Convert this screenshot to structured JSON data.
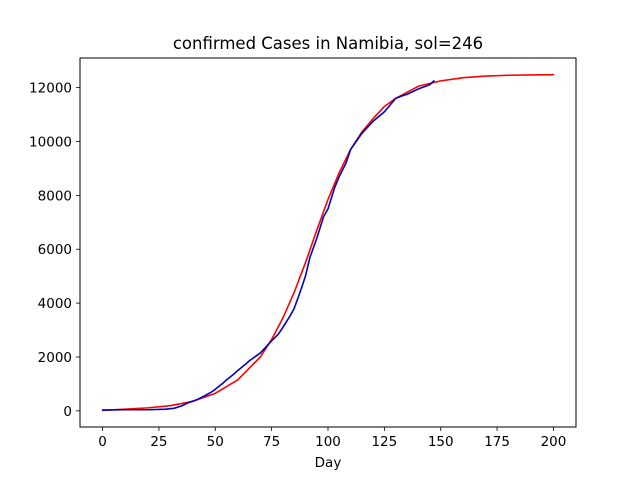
{
  "chart_data": {
    "type": "line",
    "title": "confirmed Cases in Namibia, sol=246",
    "xlabel": "Day",
    "ylabel": "",
    "xlim": [
      -10,
      210
    ],
    "ylim": [
      -600,
      13100
    ],
    "x_ticks": [
      0,
      25,
      50,
      75,
      100,
      125,
      150,
      175,
      200
    ],
    "y_ticks": [
      0,
      2000,
      4000,
      6000,
      8000,
      10000,
      12000
    ],
    "grid": false,
    "legend": "none",
    "series": [
      {
        "role": "fitted",
        "color": "#ff0000",
        "x": [
          0,
          10,
          20,
          30,
          40,
          50,
          60,
          70,
          75,
          80,
          85,
          90,
          95,
          100,
          105,
          110,
          115,
          120,
          125,
          130,
          140,
          150,
          160,
          170,
          180,
          190,
          200
        ],
        "y": [
          20,
          60,
          110,
          190,
          350,
          650,
          1150,
          2000,
          2650,
          3450,
          4400,
          5500,
          6700,
          7850,
          8850,
          9700,
          10350,
          10850,
          11300,
          11600,
          12050,
          12250,
          12370,
          12430,
          12460,
          12470,
          12480
        ]
      },
      {
        "role": "confirmed",
        "color": "#0000cc",
        "x": [
          0,
          10,
          20,
          28,
          32,
          35,
          38,
          42,
          45,
          48,
          50,
          53,
          55,
          58,
          60,
          63,
          65,
          70,
          75,
          78,
          80,
          83,
          85,
          88,
          90,
          92,
          95,
          98,
          100,
          103,
          105,
          108,
          110,
          115,
          120,
          125,
          130,
          133,
          135,
          140,
          145,
          147
        ],
        "y": [
          30,
          40,
          40,
          60,
          100,
          180,
          300,
          420,
          550,
          680,
          800,
          1000,
          1150,
          1350,
          1500,
          1700,
          1850,
          2150,
          2600,
          2850,
          3100,
          3500,
          3800,
          4500,
          5000,
          5700,
          6400,
          7200,
          7500,
          8300,
          8700,
          9200,
          9700,
          10300,
          10750,
          11100,
          11600,
          11700,
          11750,
          11950,
          12100,
          12250
        ]
      }
    ]
  }
}
